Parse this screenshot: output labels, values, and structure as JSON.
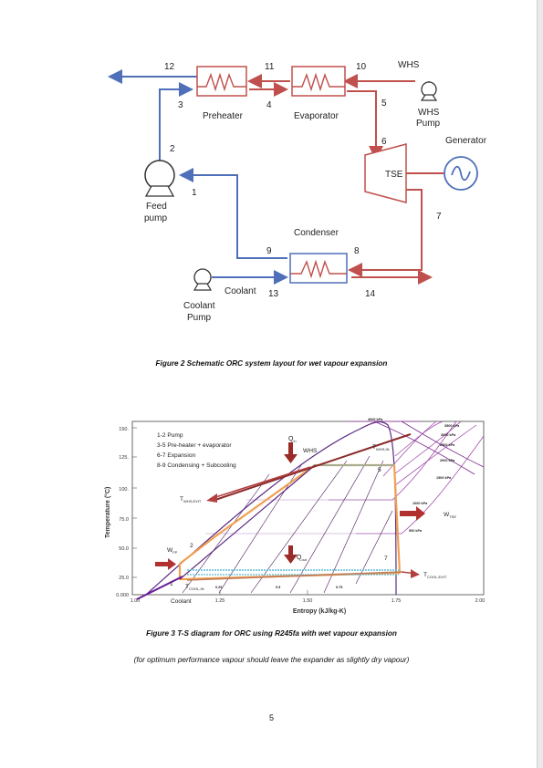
{
  "schematic": {
    "stream_numbers": [
      "12",
      "11",
      "10",
      "3",
      "4",
      "5",
      "2",
      "6",
      "1",
      "7",
      "9",
      "8",
      "13",
      "14"
    ],
    "components": {
      "preheater": "Preheater",
      "evaporator": "Evaporator",
      "whs": "WHS",
      "whs_pump_line1": "WHS",
      "whs_pump_line2": "Pump",
      "generator": "Generator",
      "tse": "TSE",
      "feed_pump_line1": "Feed",
      "feed_pump_line2": "pump",
      "condenser": "Condenser",
      "coolant": "Coolant",
      "coolant_pump_line1": "Coolant",
      "coolant_pump_line2": "Pump"
    },
    "colors": {
      "hot": "#c0504d",
      "cold": "#4f6fb8"
    }
  },
  "figure2_caption": "Figure 2 Schematic ORC system layout for wet vapour expansion",
  "ts_diagram": {
    "ylabel": "Temperature (°C)",
    "xlabel": "Entropy (kJ/kg-K)",
    "y_ticks": [
      "150.",
      "125.",
      "100.",
      "75.0",
      "50.0",
      "25.0",
      "0.000"
    ],
    "x_ticks": [
      "1.00",
      "1.25",
      "1.50",
      "1.75",
      "2.00"
    ],
    "legend_lines": [
      "1-2 Pump",
      "3-5 Pre-heater + evaporator",
      "6-7 Expansion",
      "8-9 Condensing + Subcooling"
    ],
    "pressure_labels": [
      "4000 kPa",
      "3500 kPa",
      "3000 kPa",
      "2500 kPa",
      "2000 kPa",
      "1500 kPa",
      "1000 kPa",
      "500 kPa"
    ],
    "quality_labels": [
      "0.25",
      "0.5",
      "0.75"
    ],
    "annotations": {
      "q_in": "Q",
      "q_in_sub": "in",
      "whs": "WHS",
      "t_whs_in": "T",
      "t_whs_in_sub": "WHS,IN",
      "t_whs_exit": "T",
      "t_whs_exit_sub": "WHS,EXIT",
      "w_tse": "W",
      "w_tse_sub": "TSE",
      "w_fp": "W",
      "w_fp_sub": "FP",
      "q_out": "Q",
      "q_out_sub": "out",
      "t_cool_exit": "T",
      "t_cool_exit_sub": "COOL,EXIT",
      "t_cool_in": "T",
      "t_cool_in_sub": "COOL,IN",
      "coolant": "Coolant",
      "pt1": "1",
      "pt2": "2",
      "pt5": "5",
      "pt7": "7"
    }
  },
  "figure3_caption": "Figure 3 T-S diagram for ORC using R245fa with wet vapour expansion",
  "note": "(for optimum performance vapour should leave the expander as slightly dry vapour)",
  "page_number": "5"
}
